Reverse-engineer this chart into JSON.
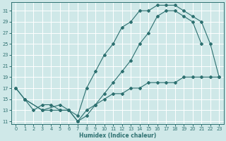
{
  "xlabel": "Humidex (Indice chaleur)",
  "bg_color": "#cfe8e8",
  "line_color": "#2d7070",
  "grid_color": "#ffffff",
  "xlim": [
    -0.5,
    23.5
  ],
  "ylim": [
    10.5,
    32.5
  ],
  "xticks": [
    0,
    1,
    2,
    3,
    4,
    5,
    6,
    7,
    8,
    9,
    10,
    11,
    12,
    13,
    14,
    15,
    16,
    17,
    18,
    19,
    20,
    21,
    22,
    23
  ],
  "yticks": [
    11,
    13,
    15,
    17,
    19,
    21,
    23,
    25,
    27,
    29,
    31
  ],
  "curve1_x": [
    0,
    1,
    3,
    4,
    5,
    6,
    7,
    8,
    9,
    10,
    11,
    12,
    13,
    14,
    15,
    16,
    17,
    18,
    19,
    20,
    21
  ],
  "curve1_y": [
    17,
    15,
    13,
    13,
    13,
    13,
    11,
    12,
    14,
    16,
    18,
    20,
    22,
    25,
    27,
    30,
    31,
    31,
    30,
    29,
    25
  ],
  "curve2_x": [
    0,
    1,
    3,
    5,
    6,
    7,
    8,
    9,
    10,
    11,
    12,
    13,
    14,
    15,
    16,
    17,
    18,
    19,
    20,
    21,
    22,
    23
  ],
  "curve2_y": [
    17,
    15,
    13,
    14,
    13,
    12,
    17,
    20,
    23,
    25,
    28,
    29,
    31,
    31,
    32,
    32,
    32,
    31,
    30,
    29,
    25,
    19
  ],
  "curve3_x": [
    1,
    2,
    3,
    4,
    5,
    6,
    7,
    8,
    9,
    10,
    11,
    12,
    13,
    14,
    15,
    16,
    17,
    18,
    19,
    20,
    21,
    22,
    23
  ],
  "curve3_y": [
    15,
    13,
    14,
    14,
    13,
    13,
    11,
    13,
    14,
    15,
    16,
    16,
    17,
    17,
    18,
    18,
    18,
    18,
    19,
    19,
    19,
    19,
    19
  ]
}
